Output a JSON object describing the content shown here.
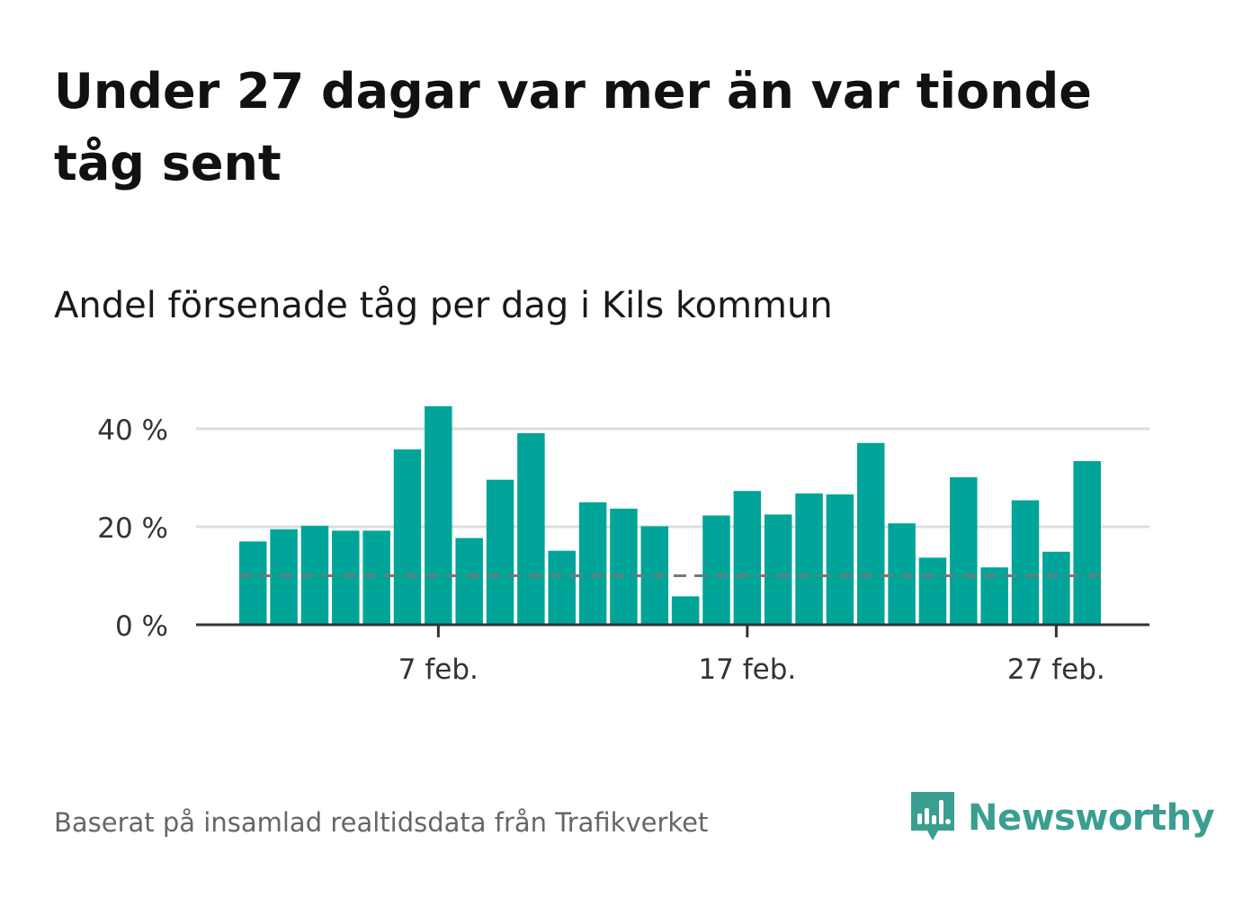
{
  "title": "Under 27 dagar var mer än var tionde tåg sent",
  "subtitle": "Andel försenade tåg per dag i Kils kommun",
  "source": "Baserat på insamlad realtidsdata från Trafikverket",
  "brand": {
    "name": "Newsworthy",
    "icon": "newsworthy-logo-icon",
    "color": "#3a9e92"
  },
  "colors": {
    "bar": "#00a499",
    "grid": "#dddddd",
    "axis": "#333333",
    "reference": "#777777"
  },
  "chart_data": {
    "type": "bar",
    "x_unit": "day",
    "categories": [
      "1 feb.",
      "2 feb.",
      "3 feb.",
      "4 feb.",
      "5 feb.",
      "6 feb.",
      "7 feb.",
      "8 feb.",
      "9 feb.",
      "10 feb.",
      "11 feb.",
      "12 feb.",
      "13 feb.",
      "14 feb.",
      "15 feb.",
      "16 feb.",
      "17 feb.",
      "18 feb.",
      "19 feb.",
      "20 feb.",
      "21 feb.",
      "22 feb.",
      "23 feb.",
      "24 feb.",
      "25 feb.",
      "26 feb.",
      "27 feb.",
      "28 feb."
    ],
    "values": [
      17,
      19.5,
      20.2,
      19.2,
      19.2,
      35.8,
      44.6,
      17.7,
      29.6,
      39.1,
      15.1,
      25,
      23.7,
      20.1,
      5.8,
      22.3,
      27.3,
      22.5,
      26.8,
      26.6,
      37.1,
      20.7,
      13.7,
      30.1,
      11.7,
      25.4,
      14.9,
      33.4
    ],
    "reference_line": 10,
    "ylim": [
      0,
      45
    ],
    "yticks": [
      0,
      20,
      40
    ],
    "ytick_labels": [
      "0 %",
      "20 %",
      "40 %"
    ],
    "xtick_labels": [
      {
        "category": "7 feb.",
        "label": "7 feb."
      },
      {
        "category": "17 feb.",
        "label": "17 feb."
      },
      {
        "category": "27 feb.",
        "label": "27 feb."
      }
    ],
    "grid": true,
    "legend": "none"
  }
}
